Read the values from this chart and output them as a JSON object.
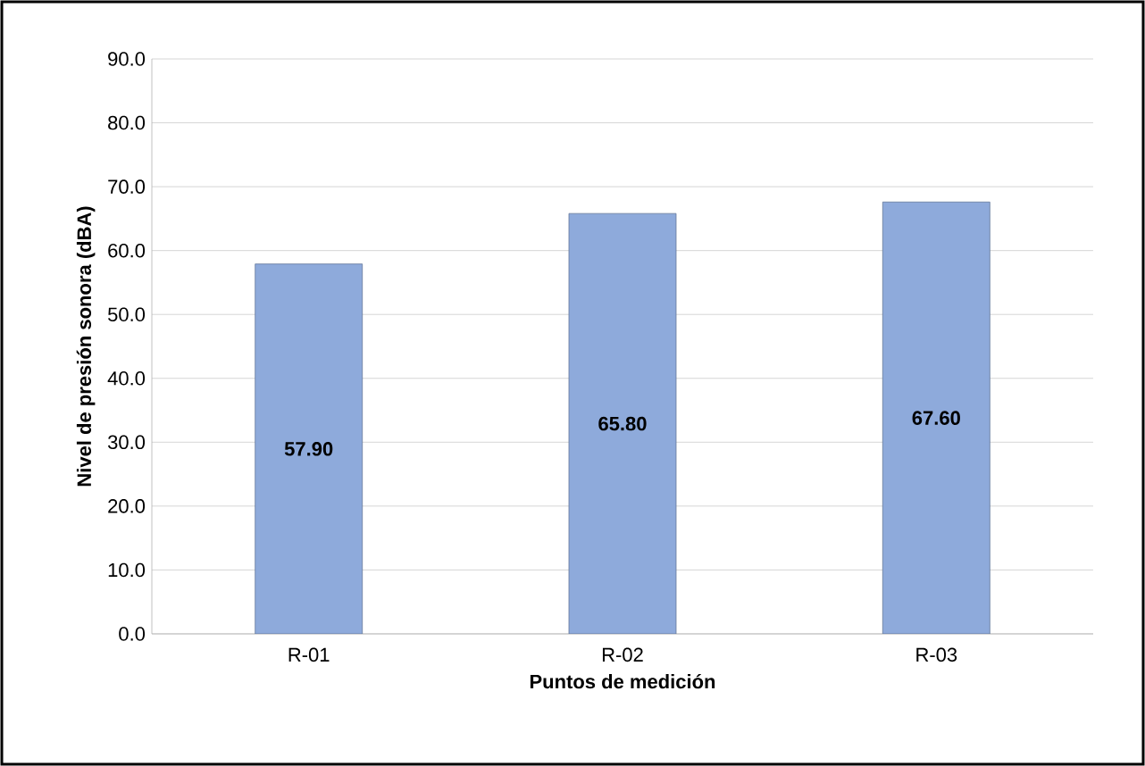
{
  "chart_data": {
    "type": "bar",
    "xlabel": "Puntos de medición",
    "ylabel": "Nivel de presión sonora (dBA)",
    "categories": [
      "R-01",
      "R-02",
      "R-03"
    ],
    "values": [
      57.9,
      65.8,
      67.6
    ],
    "value_labels": [
      "57.90",
      "65.80",
      "67.60"
    ],
    "color": "#8eaadb",
    "ylim": [
      0,
      90
    ],
    "yticks": [
      {
        "value": 0,
        "label": "0.0"
      },
      {
        "value": 10,
        "label": "10.0"
      },
      {
        "value": 20,
        "label": "20.0"
      },
      {
        "value": 30,
        "label": "30.0"
      },
      {
        "value": 40,
        "label": "40.0"
      },
      {
        "value": 50,
        "label": "50.0"
      },
      {
        "value": 60,
        "label": "60.0"
      },
      {
        "value": 70,
        "label": "70.0"
      },
      {
        "value": 80,
        "label": "80.0"
      },
      {
        "value": 90,
        "label": "90.0"
      }
    ],
    "grid": "y"
  }
}
